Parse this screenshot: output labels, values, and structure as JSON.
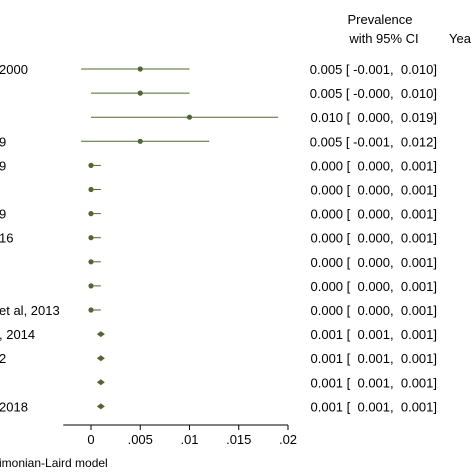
{
  "chart_data": {
    "type": "forest",
    "header": {
      "col1_line1": "Prevalence",
      "col1_line2": "with 95% CI",
      "col2": "Yea"
    },
    "study_labels": [
      "2000",
      "",
      "",
      "9",
      "9",
      "",
      "9",
      "16",
      "",
      "",
      "et al, 2013",
      ", 2014",
      "2",
      "",
      " 2018"
    ],
    "rows": [
      {
        "est": 0.005,
        "lo": -0.001,
        "hi": 0.01,
        "ci_text": "0.005 [ -0.001,  0.010]"
      },
      {
        "est": 0.005,
        "lo": -0.0,
        "hi": 0.01,
        "ci_text": "0.005 [ -0.000,  0.010]"
      },
      {
        "est": 0.01,
        "lo": 0.0,
        "hi": 0.019,
        "ci_text": "0.010 [  0.000,  0.019]"
      },
      {
        "est": 0.005,
        "lo": -0.001,
        "hi": 0.012,
        "ci_text": "0.005 [ -0.001,  0.012]"
      },
      {
        "est": 0.0,
        "lo": 0.0,
        "hi": 0.001,
        "ci_text": "0.000 [  0.000,  0.001]"
      },
      {
        "est": 0.0,
        "lo": 0.0,
        "hi": 0.001,
        "ci_text": "0.000 [  0.000,  0.001]"
      },
      {
        "est": 0.0,
        "lo": 0.0,
        "hi": 0.001,
        "ci_text": "0.000 [  0.000,  0.001]"
      },
      {
        "est": 0.0,
        "lo": 0.0,
        "hi": 0.001,
        "ci_text": "0.000 [  0.000,  0.001]"
      },
      {
        "est": 0.0,
        "lo": 0.0,
        "hi": 0.001,
        "ci_text": "0.000 [  0.000,  0.001]"
      },
      {
        "est": 0.0,
        "lo": 0.0,
        "hi": 0.001,
        "ci_text": "0.000 [  0.000,  0.001]"
      },
      {
        "est": 0.0,
        "lo": 0.0,
        "hi": 0.001,
        "ci_text": "0.000 [  0.000,  0.001]"
      },
      {
        "est": 0.001,
        "lo": 0.001,
        "hi": 0.001,
        "ci_text": "0.001 [  0.001,  0.001]"
      },
      {
        "est": 0.001,
        "lo": 0.001,
        "hi": 0.001,
        "ci_text": "0.001 [  0.001,  0.001]"
      },
      {
        "est": 0.001,
        "lo": 0.001,
        "hi": 0.001,
        "ci_text": "0.001 [  0.001,  0.001]"
      },
      {
        "est": 0.001,
        "lo": 0.001,
        "hi": 0.001,
        "ci_text": "0.001 [  0.001,  0.001]"
      }
    ],
    "x_ticks": [
      0,
      0.005,
      0.01,
      0.015,
      0.02
    ],
    "x_tick_labels": [
      "0",
      ".005",
      ".01",
      ".015",
      ".02"
    ],
    "xlim": [
      -0.0015,
      0.02
    ],
    "footnote": "imonian-Laird model",
    "marker_color": "#4d6a2a",
    "grid": false
  }
}
